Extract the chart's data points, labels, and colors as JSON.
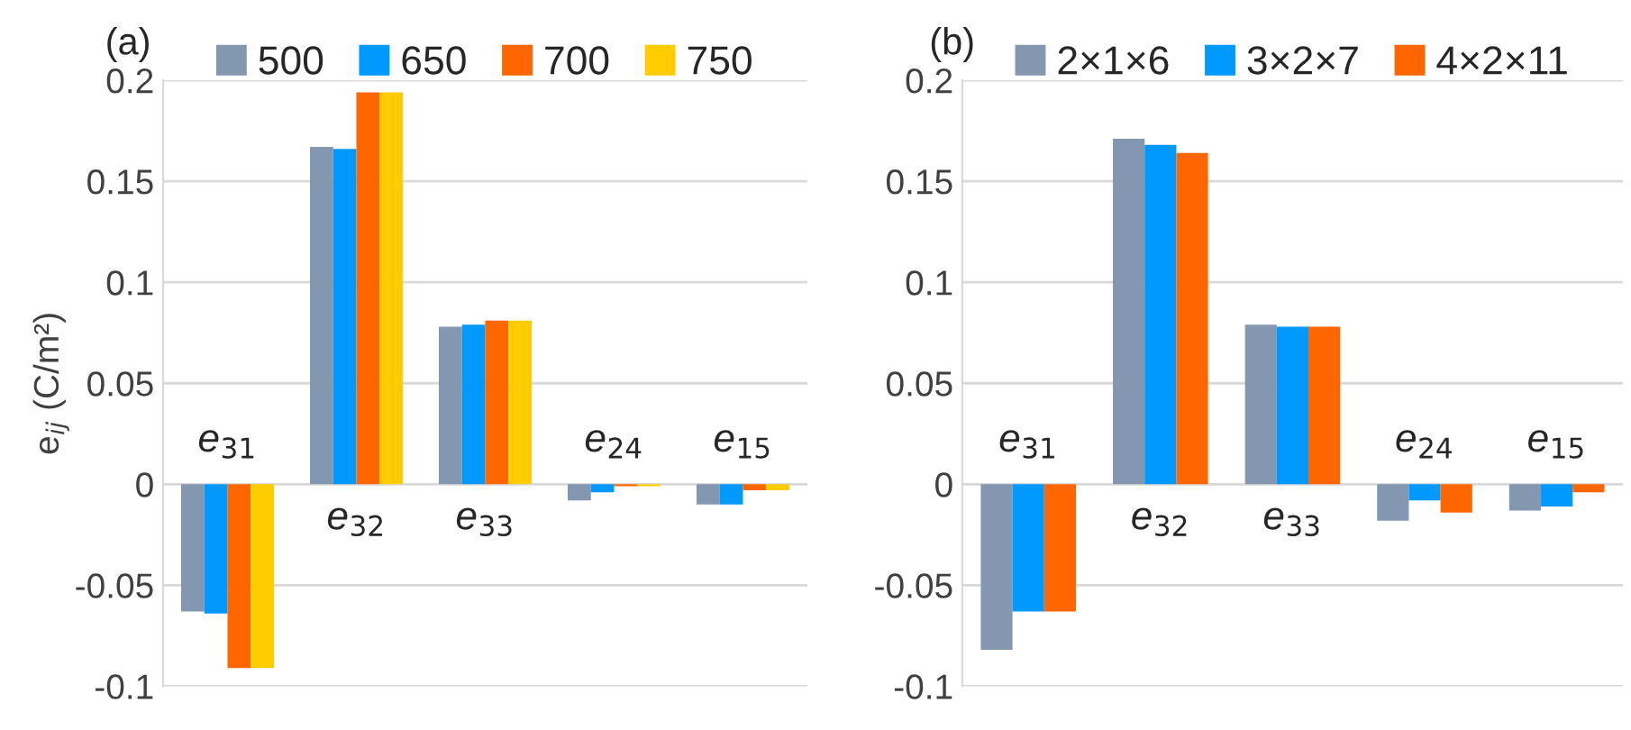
{
  "chart_data": [
    {
      "type": "bar",
      "title": "(a)",
      "ylabel": "e$_{ij}$ (C/m²)",
      "categories": [
        "e$_{31}$",
        "e$_{32}$",
        "e$_{33}$",
        "e$_{24}$",
        "e$_{15}$"
      ],
      "series": [
        {
          "name": "500",
          "color": "#8497b0",
          "values": [
            -0.063,
            0.167,
            0.078,
            -0.008,
            -0.01
          ]
        },
        {
          "name": "650",
          "color": "#0099ff",
          "values": [
            -0.064,
            0.166,
            0.079,
            -0.004,
            -0.01
          ]
        },
        {
          "name": "700",
          "color": "#ff6600",
          "values": [
            -0.091,
            0.194,
            0.081,
            -0.001,
            -0.003
          ]
        },
        {
          "name": "750",
          "color": "#ffcc00",
          "values": [
            -0.091,
            0.194,
            0.081,
            -0.001,
            -0.003
          ]
        }
      ],
      "ylim": [
        -0.1,
        0.2
      ],
      "yticks": [
        -0.1,
        -0.05,
        0,
        0.05,
        0.1,
        0.15,
        0.2
      ],
      "grid": "y",
      "legend": "top"
    },
    {
      "type": "bar",
      "title": "(b)",
      "categories": [
        "e$_{31}$",
        "e$_{32}$",
        "e$_{33}$",
        "e$_{24}$",
        "e$_{15}$"
      ],
      "series": [
        {
          "name": "2×1×6",
          "color": "#8497b0",
          "values": [
            -0.082,
            0.171,
            0.079,
            -0.018,
            -0.013
          ]
        },
        {
          "name": "3×2×7",
          "color": "#0099ff",
          "values": [
            -0.063,
            0.168,
            0.078,
            -0.008,
            -0.011
          ]
        },
        {
          "name": "4×2×11",
          "color": "#ff6600",
          "values": [
            -0.063,
            0.164,
            0.078,
            -0.014,
            -0.004
          ]
        }
      ],
      "ylim": [
        -0.1,
        0.2
      ],
      "yticks": [
        -0.1,
        -0.05,
        0,
        0.05,
        0.1,
        0.15,
        0.2
      ],
      "grid": "y",
      "legend": "top"
    }
  ]
}
